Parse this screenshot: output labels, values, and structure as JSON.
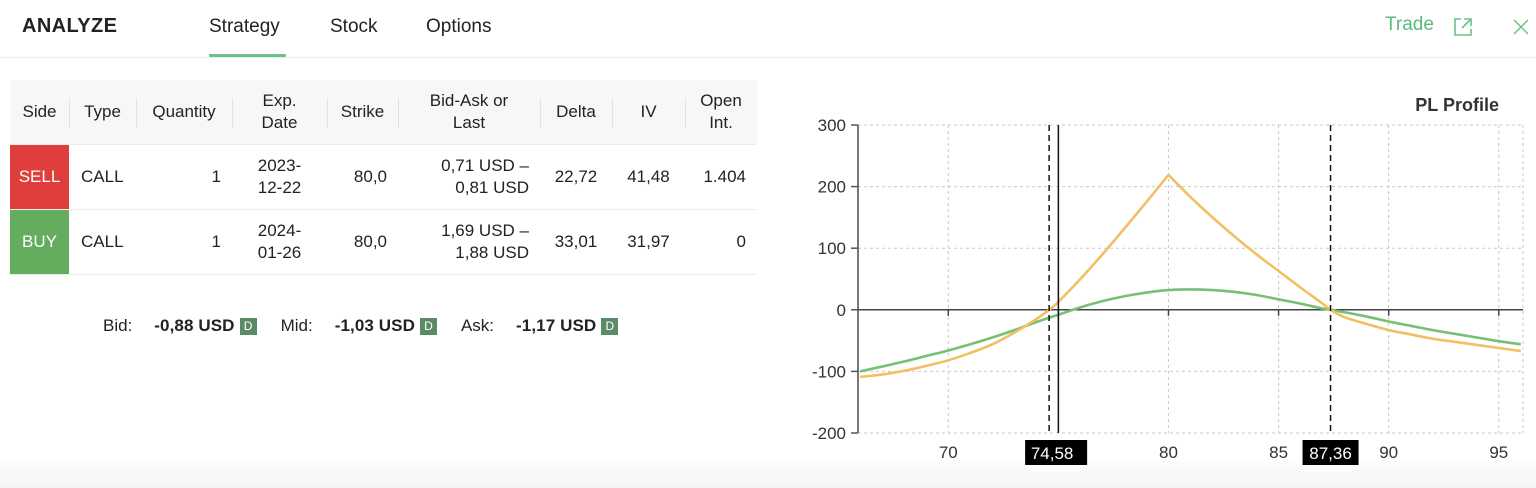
{
  "header": {
    "title": "ANALYZE",
    "tabs": [
      {
        "label": "Strategy",
        "active": true
      },
      {
        "label": "Stock",
        "active": false
      },
      {
        "label": "Options",
        "active": false
      }
    ],
    "trade_label": "Trade",
    "icons": {
      "external_link": "external-link-icon",
      "close": "close-icon"
    }
  },
  "colors": {
    "accent": "#5cb87a",
    "sell": "#e03d3d",
    "buy": "#64ad5f",
    "badge": "#5b8a66",
    "table_header_bg": "#f7f7f7"
  },
  "table": {
    "headers": [
      [
        "Side"
      ],
      [
        "Type"
      ],
      [
        "Quantity"
      ],
      [
        "Exp.",
        "Date"
      ],
      [
        "Strike"
      ],
      [
        "Bid-Ask or",
        "Last"
      ],
      [
        "Delta"
      ],
      [
        "IV"
      ],
      [
        "Open",
        "Int."
      ]
    ],
    "rows": [
      {
        "side": "SELL",
        "type": "CALL",
        "quantity": "1",
        "exp_date": [
          "2023-",
          "12-22"
        ],
        "strike": "80,0",
        "bid_ask": [
          "0,71 USD –",
          "0,81 USD"
        ],
        "delta": "22,72",
        "iv": "41,48",
        "open_int": "1.404"
      },
      {
        "side": "BUY",
        "type": "CALL",
        "quantity": "1",
        "exp_date": [
          "2024-",
          "01-26"
        ],
        "strike": "80,0",
        "bid_ask": [
          "1,69 USD –",
          "1,88 USD"
        ],
        "delta": "33,01",
        "iv": "31,97",
        "open_int": "0"
      }
    ]
  },
  "quote_summary": {
    "bid_label": "Bid:",
    "bid_value": "-0,88 USD",
    "mid_label": "Mid:",
    "mid_value": "-1,03 USD",
    "ask_label": "Ask:",
    "ask_value": "-1,17 USD",
    "badge": "D"
  },
  "chart_data": {
    "type": "line",
    "title": "PL Profile",
    "xlabel": "",
    "ylabel": "",
    "xlim": [
      65.9,
      96.1
    ],
    "ylim": [
      -200,
      300
    ],
    "grid": true,
    "legend": null,
    "y_ticks": [
      300,
      200,
      100,
      0,
      -100,
      -200
    ],
    "y_tick_labels": [
      "300",
      "200",
      "100",
      "0",
      "-100",
      "-200"
    ],
    "x_gridlines": [
      70,
      75,
      80,
      85,
      90,
      95
    ],
    "x_tick_labels": [
      {
        "value": 70,
        "label": "70"
      },
      {
        "value": 80,
        "label": "80"
      },
      {
        "value": 85,
        "label": "85"
      },
      {
        "value": 90,
        "label": "90"
      },
      {
        "value": 95,
        "label": "95"
      }
    ],
    "series": [
      {
        "name": "green curve",
        "color": "#78bf76",
        "x": [
          66,
          67,
          68,
          69,
          70,
          71,
          72,
          73,
          74,
          75,
          76,
          77,
          78,
          79,
          80,
          81,
          82,
          83,
          84,
          85,
          86,
          87,
          87.36,
          88,
          89,
          90,
          91,
          92,
          93,
          94,
          95,
          96
        ],
        "y": [
          -100,
          -92,
          -84,
          -75,
          -66,
          -56,
          -45,
          -33,
          -20,
          -8,
          4,
          14,
          22,
          28,
          32,
          33,
          32,
          29,
          24,
          17,
          10,
          2,
          0,
          -4,
          -11,
          -19,
          -26,
          -33,
          -39,
          -45,
          -51,
          -56
        ]
      },
      {
        "name": "orange curve",
        "color": "#f2bf62",
        "kinks": [
          80
        ],
        "x": [
          66,
          67,
          68,
          69,
          70,
          71,
          72,
          73,
          74,
          74.58,
          75,
          76,
          77,
          78,
          79,
          80,
          81,
          82,
          83,
          84,
          85,
          86,
          87,
          87.36,
          88,
          89,
          90,
          91,
          92,
          93,
          94,
          95,
          96
        ],
        "y": [
          -109,
          -105,
          -99,
          -91,
          -82,
          -70,
          -56,
          -37,
          -15,
          0,
          13,
          50,
          90,
          132,
          175,
          219,
          183,
          150,
          119,
          90,
          63,
          36,
          10,
          0,
          -12,
          -23,
          -33,
          -40,
          -47,
          -52,
          -57,
          -62,
          -67
        ]
      }
    ],
    "markers": [
      {
        "kind": "breakeven",
        "value": 74.58,
        "label": "74,58",
        "style": "dashed"
      },
      {
        "kind": "breakeven",
        "value": 87.36,
        "label": "87,36",
        "style": "dashed"
      },
      {
        "kind": "current-price",
        "value": 75.0,
        "style": "solid"
      }
    ]
  }
}
